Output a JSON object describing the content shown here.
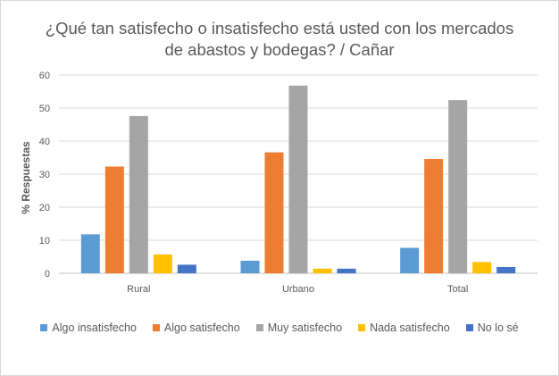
{
  "chart_data": {
    "type": "bar",
    "title": "¿Qué tan satisfecho o insatisfecho está usted con los mercados de abastos y bodegas? / Cañar",
    "title_lines": [
      "¿Qué tan satisfecho o insatisfecho está usted con los mercados",
      "de abastos y bodegas? / Cañar"
    ],
    "ylabel": "% Respuestas",
    "xlabel": "",
    "ylim": [
      0,
      60
    ],
    "yticks": [
      0,
      10,
      20,
      30,
      40,
      50,
      60
    ],
    "categories": [
      "Rural",
      "Urbano",
      "Total"
    ],
    "grid": true,
    "legend_position": "bottom",
    "series": [
      {
        "name": "Algo insatisfecho",
        "color": "#5b9bd5",
        "values": [
          11.8,
          3.8,
          7.7
        ]
      },
      {
        "name": "Algo satisfecho",
        "color": "#ed7d31",
        "values": [
          32.3,
          36.6,
          34.6
        ]
      },
      {
        "name": "Muy satisfecho",
        "color": "#a5a5a5",
        "values": [
          47.6,
          56.8,
          52.4
        ]
      },
      {
        "name": "Nada satisfecho",
        "color": "#ffc000",
        "values": [
          5.7,
          1.4,
          3.4
        ]
      },
      {
        "name": "No lo sé",
        "color": "#4472c4",
        "values": [
          2.6,
          1.4,
          1.9
        ]
      }
    ]
  }
}
